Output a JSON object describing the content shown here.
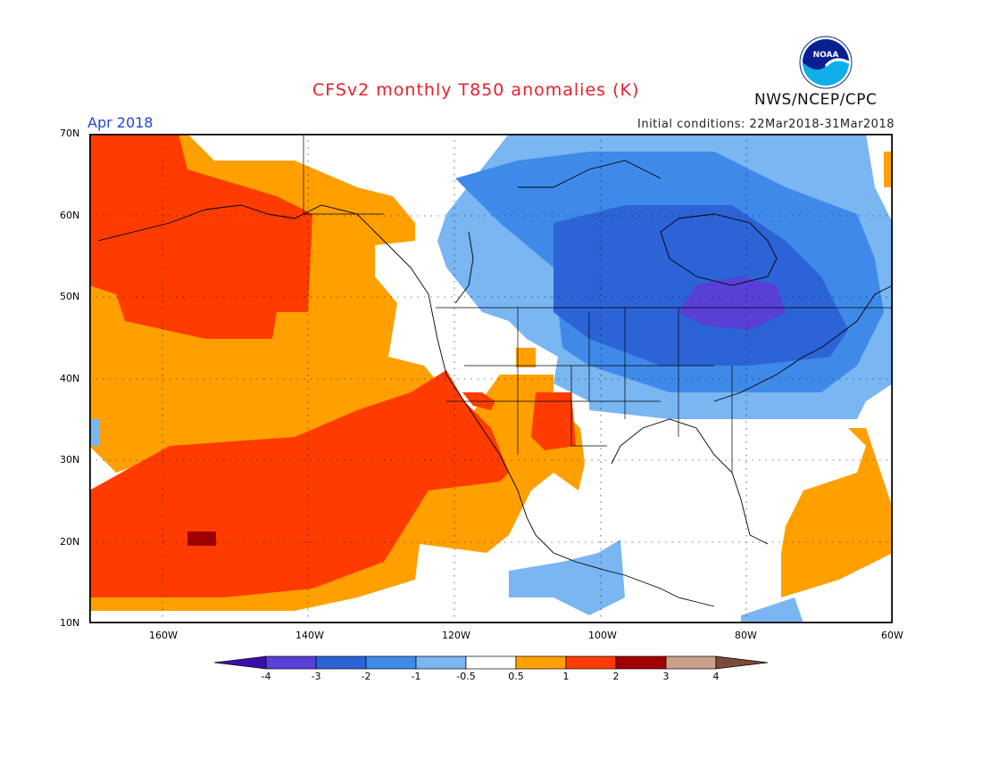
{
  "header": {
    "title": "CFSv2 monthly T850 anomalies (K)",
    "period": "Apr 2018",
    "initial_conditions": "Initial conditions: 22Mar2018-31Mar2018",
    "agency": "NWS/NCEP/CPC",
    "logo_text": "NOAA"
  },
  "axes": {
    "lat_labels": [
      "70N",
      "60N",
      "50N",
      "40N",
      "30N",
      "20N",
      "10N"
    ],
    "lon_labels": [
      "160W",
      "140W",
      "120W",
      "100W",
      "80W",
      "60W"
    ]
  },
  "colorbar": {
    "labels": [
      "-4",
      "-3",
      "-2",
      "-1",
      "-0.5",
      "0.5",
      "1",
      "2",
      "3",
      "4"
    ],
    "colors": [
      "#3a0fa8",
      "#5a3fd6",
      "#2c63d6",
      "#3f8ae8",
      "#79b6f2",
      "#ffffff",
      "#ffa000",
      "#ff3c00",
      "#a00000",
      "#c8a08c",
      "#7a4a3a"
    ]
  }
}
